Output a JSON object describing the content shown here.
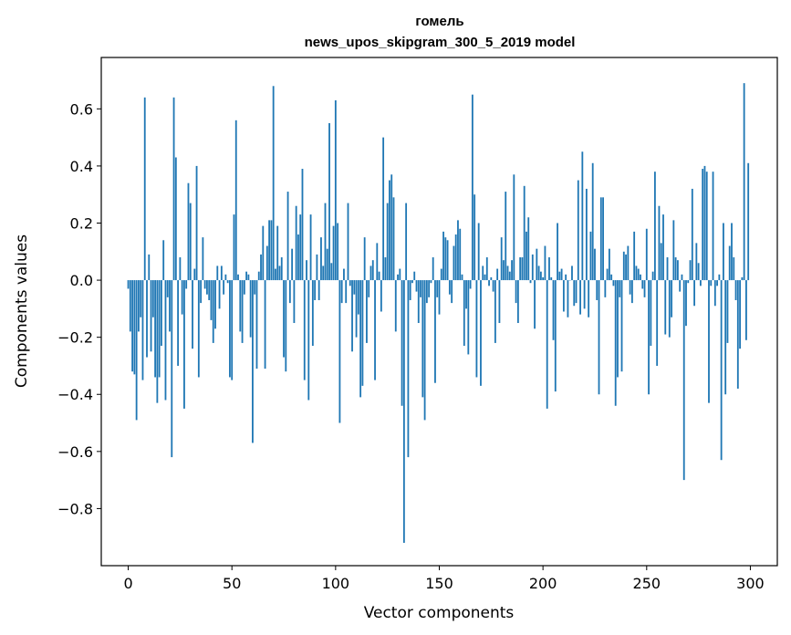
{
  "chart_data": {
    "type": "bar",
    "title": "гомель",
    "subtitle": "news_upos_skipgram_300_5_2019 model",
    "xlabel": "Vector components",
    "ylabel": "Components values",
    "xlim": [
      -13,
      313
    ],
    "ylim": [
      -1.0,
      0.78
    ],
    "xticks": [
      0,
      50,
      100,
      150,
      200,
      250,
      300
    ],
    "yticks": [
      -0.8,
      -0.6,
      -0.4,
      -0.2,
      0.0,
      0.2,
      0.4,
      0.6
    ],
    "ytick_labels": [
      "−0.8",
      "−0.6",
      "−0.4",
      "−0.2",
      "0.0",
      "0.2",
      "0.4",
      "0.6"
    ],
    "grid": false,
    "bar_color": "#1f77b4",
    "x": "0..299",
    "values": [
      -0.03,
      -0.18,
      -0.32,
      -0.33,
      -0.49,
      -0.18,
      -0.13,
      -0.35,
      0.64,
      -0.27,
      0.09,
      -0.25,
      -0.13,
      -0.34,
      -0.43,
      -0.34,
      -0.23,
      0.14,
      -0.42,
      -0.06,
      -0.18,
      -0.62,
      0.64,
      0.43,
      -0.3,
      0.08,
      -0.12,
      -0.45,
      -0.03,
      0.34,
      0.27,
      -0.24,
      0.04,
      0.4,
      -0.34,
      -0.08,
      0.15,
      -0.03,
      -0.05,
      -0.07,
      -0.14,
      -0.22,
      -0.17,
      0.05,
      -0.1,
      0.05,
      -0.05,
      0.02,
      -0.01,
      -0.34,
      -0.35,
      0.23,
      0.56,
      0.02,
      -0.18,
      -0.22,
      -0.05,
      0.03,
      0.02,
      -0.2,
      -0.57,
      -0.05,
      -0.31,
      0.03,
      0.09,
      0.19,
      -0.31,
      0.12,
      0.21,
      0.21,
      0.68,
      0.04,
      0.19,
      0.05,
      0.08,
      -0.27,
      -0.32,
      0.31,
      -0.08,
      0.11,
      -0.15,
      0.26,
      0.16,
      0.23,
      0.39,
      -0.35,
      0.07,
      -0.42,
      0.23,
      -0.23,
      -0.07,
      0.09,
      -0.07,
      0.15,
      0.05,
      0.27,
      0.11,
      0.55,
      0.06,
      0.19,
      0.63,
      0.2,
      -0.5,
      -0.08,
      0.04,
      -0.08,
      0.27,
      -0.02,
      -0.25,
      -0.05,
      -0.2,
      -0.12,
      -0.41,
      -0.37,
      0.15,
      -0.22,
      -0.06,
      0.05,
      0.07,
      -0.35,
      0.13,
      0.03,
      -0.11,
      0.5,
      0.08,
      0.27,
      0.35,
      0.37,
      0.29,
      -0.18,
      0.02,
      0.04,
      -0.44,
      -0.92,
      0.27,
      -0.62,
      -0.07,
      -0.01,
      0.03,
      -0.04,
      -0.15,
      -0.06,
      -0.41,
      -0.49,
      -0.08,
      -0.06,
      -0.01,
      0.08,
      -0.36,
      -0.06,
      -0.12,
      0.04,
      0.17,
      0.15,
      0.14,
      -0.05,
      -0.08,
      0.12,
      0.16,
      0.21,
      0.18,
      0.02,
      -0.23,
      -0.1,
      -0.26,
      -0.03,
      0.65,
      0.3,
      -0.34,
      0.2,
      -0.37,
      0.05,
      0.02,
      0.08,
      -0.02,
      0.01,
      -0.04,
      -0.22,
      0.04,
      -0.15,
      0.15,
      0.07,
      0.31,
      0.05,
      0.03,
      0.07,
      0.37,
      -0.08,
      -0.15,
      0.08,
      0.08,
      0.33,
      0.17,
      0.22,
      -0.01,
      0.09,
      -0.17,
      0.11,
      0.05,
      0.03,
      0.01,
      0.12,
      -0.45,
      0.08,
      0.01,
      -0.21,
      -0.39,
      0.2,
      0.03,
      0.04,
      -0.11,
      0.02,
      -0.13,
      0.0,
      0.05,
      -0.09,
      -0.08,
      0.35,
      -0.12,
      0.45,
      -0.1,
      0.32,
      -0.13,
      0.17,
      0.41,
      0.11,
      -0.07,
      -0.4,
      0.29,
      0.29,
      -0.06,
      0.04,
      0.11,
      0.02,
      -0.02,
      -0.44,
      -0.34,
      -0.06,
      -0.32,
      0.1,
      0.09,
      0.12,
      -0.05,
      -0.08,
      0.17,
      0.05,
      0.04,
      0.02,
      -0.03,
      -0.06,
      0.18,
      -0.4,
      -0.23,
      0.03,
      0.38,
      -0.3,
      0.26,
      0.13,
      0.23,
      -0.19,
      0.08,
      -0.2,
      -0.13,
      0.21,
      0.08,
      0.07,
      -0.04,
      0.02,
      -0.7,
      -0.16,
      -0.01,
      0.07,
      0.32,
      -0.09,
      0.13,
      0.06,
      -0.02,
      0.39,
      0.4,
      0.38,
      -0.43,
      -0.02,
      0.38,
      -0.09,
      -0.02,
      0.02,
      -0.63,
      0.2,
      -0.4,
      -0.22,
      0.12,
      0.2,
      0.08,
      -0.07,
      -0.38,
      -0.24,
      0.01,
      0.69,
      -0.21,
      0.41
    ]
  }
}
